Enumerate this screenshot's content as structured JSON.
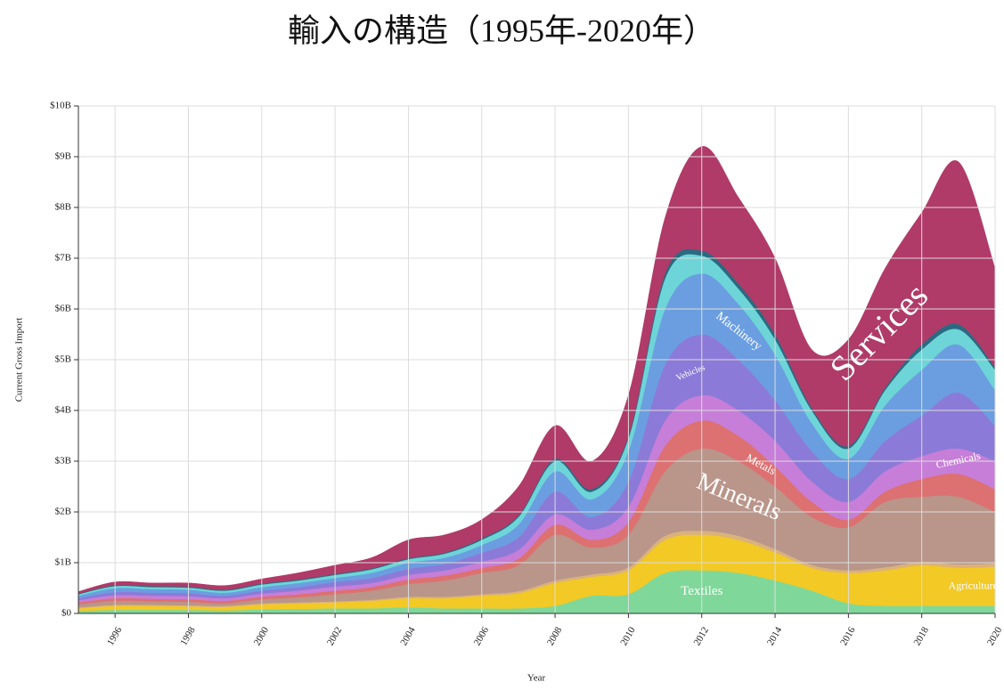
{
  "chart_data": {
    "type": "stacked_area",
    "title": "輸入の構造（1995年-2020年）",
    "x_label": "Year",
    "y_label": "Current Gross Import",
    "x": [
      1995,
      1996,
      1997,
      1998,
      1999,
      2000,
      2001,
      2002,
      2003,
      2004,
      2005,
      2006,
      2007,
      2008,
      2009,
      2010,
      2011,
      2012,
      2013,
      2014,
      2015,
      2016,
      2017,
      2018,
      2019,
      2020
    ],
    "xlim": [
      1995,
      2020
    ],
    "xticks": [
      1996,
      1998,
      2000,
      2002,
      2004,
      2006,
      2008,
      2010,
      2012,
      2014,
      2016,
      2018,
      2020
    ],
    "ylim": [
      0,
      10000000000.0
    ],
    "yticks": [
      {
        "value": 0,
        "label": "$0"
      },
      {
        "value": 1000000000.0,
        "label": "$1B"
      },
      {
        "value": 2000000000.0,
        "label": "$2B"
      },
      {
        "value": 3000000000.0,
        "label": "$3B"
      },
      {
        "value": 4000000000.0,
        "label": "$4B"
      },
      {
        "value": 5000000000.0,
        "label": "$5B"
      },
      {
        "value": 6000000000.0,
        "label": "$6B"
      },
      {
        "value": 7000000000.0,
        "label": "$7B"
      },
      {
        "value": 8000000000.0,
        "label": "$8B"
      },
      {
        "value": 9000000000.0,
        "label": "$9B"
      },
      {
        "value": 10000000000.0,
        "label": "$10B"
      }
    ],
    "grid": true,
    "series": [
      {
        "name": "Textiles",
        "color": "#7fd89a",
        "values": [
          50000000.0,
          70000000.0,
          70000000.0,
          70000000.0,
          60000000.0,
          80000000.0,
          90000000.0,
          100000000.0,
          100000000.0,
          120000000.0,
          100000000.0,
          100000000.0,
          100000000.0,
          150000000.0,
          350000000.0,
          380000000.0,
          800000000.0,
          850000000.0,
          800000000.0,
          650000000.0,
          450000000.0,
          200000000.0,
          150000000.0,
          150000000.0,
          150000000.0,
          150000000.0
        ]
      },
      {
        "name": "Agriculture",
        "color": "#f2c925",
        "values": [
          50000000.0,
          80000000.0,
          80000000.0,
          70000000.0,
          70000000.0,
          100000000.0,
          110000000.0,
          120000000.0,
          150000000.0,
          180000000.0,
          200000000.0,
          250000000.0,
          300000000.0,
          450000000.0,
          370000000.0,
          470000000.0,
          650000000.0,
          700000000.0,
          650000000.0,
          550000000.0,
          450000000.0,
          600000000.0,
          700000000.0,
          800000000.0,
          750000000.0,
          770000000.0
        ]
      },
      {
        "name": null,
        "color": "#d9b27c",
        "values": [
          20000000.0,
          20000000.0,
          20000000.0,
          20000000.0,
          20000000.0,
          20000000.0,
          20000000.0,
          20000000.0,
          20000000.0,
          30000000.0,
          30000000.0,
          30000000.0,
          40000000.0,
          50000000.0,
          50000000.0,
          60000000.0,
          80000000.0,
          80000000.0,
          80000000.0,
          70000000.0,
          60000000.0,
          50000000.0,
          60000000.0,
          70000000.0,
          70000000.0,
          70000000.0
        ]
      },
      {
        "name": "Minerals",
        "color": "#b9958a",
        "values": [
          60000000.0,
          80000000.0,
          70000000.0,
          70000000.0,
          50000000.0,
          80000000.0,
          100000000.0,
          140000000.0,
          180000000.0,
          250000000.0,
          320000000.0,
          420000000.0,
          510000000.0,
          900000000.0,
          530000000.0,
          640000000.0,
          1270000000.0,
          1620000000.0,
          1470000000.0,
          1230000000.0,
          940000000.0,
          850000000.0,
          1290000000.0,
          1280000000.0,
          1330000000.0,
          1010000000.0
        ]
      },
      {
        "name": "Metals",
        "color": "#dd7070",
        "values": [
          40000000.0,
          50000000.0,
          50000000.0,
          50000000.0,
          50000000.0,
          50000000.0,
          60000000.0,
          70000000.0,
          70000000.0,
          90000000.0,
          100000000.0,
          100000000.0,
          130000000.0,
          200000000.0,
          150000000.0,
          250000000.0,
          500000000.0,
          550000000.0,
          500000000.0,
          400000000.0,
          300000000.0,
          150000000.0,
          200000000.0,
          350000000.0,
          450000000.0,
          450000000.0
        ]
      },
      {
        "name": "Chemicals",
        "color": "#c77ed8",
        "values": [
          40000000.0,
          60000000.0,
          60000000.0,
          60000000.0,
          50000000.0,
          60000000.0,
          70000000.0,
          80000000.0,
          80000000.0,
          90000000.0,
          100000000.0,
          120000000.0,
          170000000.0,
          200000000.0,
          200000000.0,
          300000000.0,
          500000000.0,
          500000000.0,
          500000000.0,
          500000000.0,
          400000000.0,
          350000000.0,
          400000000.0,
          450000000.0,
          500000000.0,
          550000000.0
        ]
      },
      {
        "name": "Vehicles",
        "color": "#8c7ad8",
        "values": [
          40000000.0,
          60000000.0,
          60000000.0,
          60000000.0,
          50000000.0,
          60000000.0,
          70000000.0,
          90000000.0,
          100000000.0,
          120000000.0,
          130000000.0,
          180000000.0,
          250000000.0,
          450000000.0,
          250000000.0,
          500000000.0,
          1100000000.0,
          1200000000.0,
          1000000000.0,
          800000000.0,
          600000000.0,
          450000000.0,
          600000000.0,
          800000000.0,
          1100000000.0,
          700000000.0
        ]
      },
      {
        "name": "Machinery",
        "color": "#6b9ee0",
        "values": [
          50000000.0,
          80000000.0,
          70000000.0,
          70000000.0,
          60000000.0,
          70000000.0,
          80000000.0,
          80000000.0,
          100000000.0,
          120000000.0,
          120000000.0,
          150000000.0,
          250000000.0,
          400000000.0,
          350000000.0,
          600000000.0,
          1100000000.0,
          1200000000.0,
          1100000000.0,
          900000000.0,
          550000000.0,
          400000000.0,
          700000000.0,
          900000000.0,
          950000000.0,
          700000000.0
        ]
      },
      {
        "name": null,
        "color": "#6dd5d8",
        "values": [
          30000000.0,
          40000000.0,
          40000000.0,
          40000000.0,
          40000000.0,
          50000000.0,
          50000000.0,
          60000000.0,
          70000000.0,
          70000000.0,
          80000000.0,
          100000000.0,
          150000000.0,
          200000000.0,
          150000000.0,
          250000000.0,
          600000000.0,
          350000000.0,
          300000000.0,
          300000000.0,
          250000000.0,
          200000000.0,
          300000000.0,
          400000000.0,
          300000000.0,
          400000000.0
        ]
      },
      {
        "name": null,
        "color": "#2a6a80",
        "values": [
          10000000.0,
          20000000.0,
          20000000.0,
          20000000.0,
          20000000.0,
          20000000.0,
          20000000.0,
          20000000.0,
          20000000.0,
          20000000.0,
          20000000.0,
          30000000.0,
          30000000.0,
          50000000.0,
          50000000.0,
          50000000.0,
          100000000.0,
          100000000.0,
          100000000.0,
          100000000.0,
          50000000.0,
          50000000.0,
          50000000.0,
          100000000.0,
          100000000.0,
          50000000.0
        ]
      },
      {
        "name": "Services",
        "color": "#b03a68",
        "values": [
          40000000.0,
          60000000.0,
          60000000.0,
          70000000.0,
          80000000.0,
          90000000.0,
          130000000.0,
          170000000.0,
          210000000.0,
          360000000.0,
          350000000.0,
          370000000.0,
          570000000.0,
          650000000.0,
          550000000.0,
          800000000.0,
          1100000000.0,
          2050000000.0,
          1700000000.0,
          1500000000.0,
          1150000000.0,
          2100000000.0,
          2350000000.0,
          2600000000.0,
          3200000000.0,
          1950000000.0
        ]
      }
    ]
  }
}
